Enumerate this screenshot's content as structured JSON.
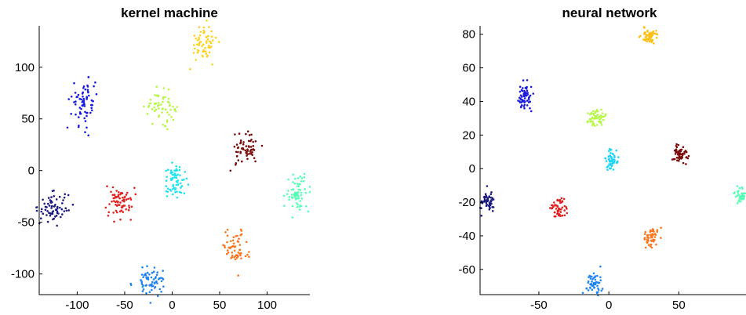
{
  "chart_data": [
    {
      "type": "scatter",
      "title": "kernel machine",
      "xlabel": "",
      "ylabel": "",
      "xlim": [
        -140,
        145
      ],
      "ylim": [
        -120,
        140
      ],
      "xticks": [
        -100,
        -50,
        0,
        50,
        100
      ],
      "xtick_labels": [
        "-100",
        "-50",
        "0",
        "50",
        "100"
      ],
      "yticks": [
        -100,
        -50,
        0,
        50,
        100
      ],
      "ytick_labels": [
        "-100",
        "-50",
        "0",
        "50",
        "100"
      ],
      "grid": false,
      "box": "left-bottom",
      "clusters": [
        {
          "color": "#fdd21f",
          "center": [
            33,
            123
          ],
          "spread": [
            7,
            9
          ],
          "n": 60
        },
        {
          "color": "#1a1adf",
          "center": [
            -92,
            66
          ],
          "spread": [
            7,
            12
          ],
          "n": 70
        },
        {
          "color": "#b6f843",
          "center": [
            -12,
            62
          ],
          "spread": [
            8,
            7
          ],
          "n": 60
        },
        {
          "color": "#7a0a0a",
          "center": [
            77,
            20
          ],
          "spread": [
            8,
            7
          ],
          "n": 65
        },
        {
          "color": "#1fe5ef",
          "center": [
            4,
            -10
          ],
          "spread": [
            6,
            8
          ],
          "n": 65
        },
        {
          "color": "#58ffb7",
          "center": [
            132,
            -22
          ],
          "spread": [
            6,
            9
          ],
          "n": 65
        },
        {
          "color": "#1b1a80",
          "center": [
            -125,
            -35
          ],
          "spread": [
            8,
            7
          ],
          "n": 70
        },
        {
          "color": "#e02222",
          "center": [
            -55,
            -30
          ],
          "spread": [
            7,
            8
          ],
          "n": 70
        },
        {
          "color": "#fa7620",
          "center": [
            66,
            -75
          ],
          "spread": [
            7,
            9
          ],
          "n": 60
        },
        {
          "color": "#2184f0",
          "center": [
            -23,
            -107
          ],
          "spread": [
            8,
            7
          ],
          "n": 70
        }
      ]
    },
    {
      "type": "scatter",
      "title": "neural network",
      "xlabel": "",
      "ylabel": "",
      "xlim": [
        -92,
        98
      ],
      "ylim": [
        -75,
        85
      ],
      "xticks": [
        -50,
        0,
        50
      ],
      "xtick_labels": [
        "-50",
        "0",
        "50"
      ],
      "yticks": [
        -60,
        -40,
        -20,
        0,
        20,
        40,
        60,
        80
      ],
      "ytick_labels": [
        "-60",
        "-40",
        "-20",
        "0",
        "20",
        "40",
        "60",
        "80"
      ],
      "grid": false,
      "box": "left-bottom",
      "clusters": [
        {
          "color": "#fdc017",
          "center": [
            29,
            79
          ],
          "spread": [
            3,
            2.5
          ],
          "n": 60
        },
        {
          "color": "#1a1adf",
          "center": [
            -60,
            42
          ],
          "spread": [
            2.5,
            4
          ],
          "n": 60
        },
        {
          "color": "#b6f843",
          "center": [
            -8,
            30
          ],
          "spread": [
            3,
            2.5
          ],
          "n": 55
        },
        {
          "color": "#7a0a0a",
          "center": [
            51,
            9
          ],
          "spread": [
            2.5,
            3
          ],
          "n": 60
        },
        {
          "color": "#1fd6f7",
          "center": [
            2,
            5
          ],
          "spread": [
            2,
            3
          ],
          "n": 55
        },
        {
          "color": "#58ffb7",
          "center": [
            95,
            -16
          ],
          "spread": [
            2.5,
            2.5
          ],
          "n": 40
        },
        {
          "color": "#1b1a80",
          "center": [
            -87,
            -20
          ],
          "spread": [
            2.5,
            3
          ],
          "n": 55
        },
        {
          "color": "#e02222",
          "center": [
            -36,
            -24
          ],
          "spread": [
            3,
            3
          ],
          "n": 55
        },
        {
          "color": "#fa7620",
          "center": [
            30,
            -41
          ],
          "spread": [
            3,
            3
          ],
          "n": 55
        },
        {
          "color": "#2184f0",
          "center": [
            -10,
            -68
          ],
          "spread": [
            3,
            3
          ],
          "n": 55
        }
      ]
    }
  ]
}
